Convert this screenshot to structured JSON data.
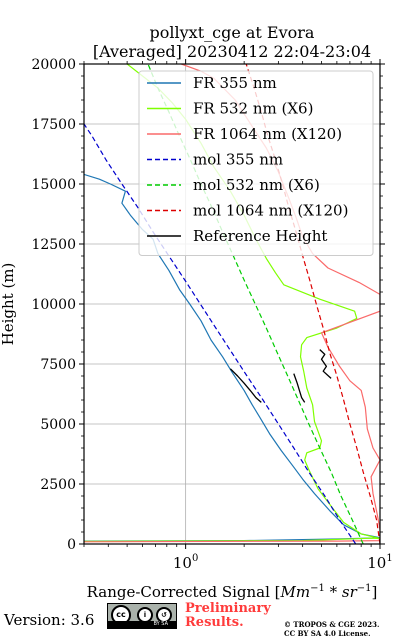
{
  "chart_data": {
    "type": "line",
    "title": "pollyxt_cge at Evora",
    "subtitle": "[Averaged] 20230412 22:04-23:04",
    "xlabel": "Range-Corrected Signal [Mm^-1 * sr^-1]",
    "xlabel_prefix": "Range-Corrected Signal [",
    "xlabel_math": "Mm",
    "xlabel_exp1": "−1",
    "xlabel_mid": " * sr",
    "xlabel_exp2": "−1",
    "xlabel_suffix": "]",
    "ylabel": "Height (m)",
    "xscale": "log",
    "xlim": [
      0.3,
      10
    ],
    "ylim": [
      0,
      20000
    ],
    "x_tick_values": [
      1,
      10
    ],
    "x_tick_bases": [
      "10",
      "10"
    ],
    "x_tick_exps": [
      "0",
      "1"
    ],
    "y_tick_values": [
      0,
      2500,
      5000,
      7500,
      10000,
      12500,
      15000,
      17500,
      20000
    ],
    "y_tick_labels": [
      "0",
      "2500",
      "5000",
      "7500",
      "10000",
      "12500",
      "15000",
      "17500",
      "20000"
    ],
    "grid": true,
    "legend_position": "top-right",
    "series": [
      {
        "name": "FR 355 nm",
        "color": "#1f77b4",
        "style": "solid",
        "width": 1.2,
        "points": [
          [
            0.3,
            120
          ],
          [
            2,
            140
          ],
          [
            6,
            210
          ],
          [
            10,
            260
          ],
          [
            8,
            420
          ],
          [
            6.5,
            800
          ],
          [
            5.5,
            1400
          ],
          [
            4.6,
            2100
          ],
          [
            4,
            2700
          ],
          [
            3.6,
            3200
          ],
          [
            3.1,
            3900
          ],
          [
            2.7,
            4600
          ],
          [
            2.4,
            5300
          ],
          [
            2.2,
            5800
          ],
          [
            2.0,
            6400
          ],
          [
            1.75,
            7100
          ],
          [
            1.55,
            7800
          ],
          [
            1.35,
            8500
          ],
          [
            1.2,
            9300
          ],
          [
            1.05,
            10000
          ],
          [
            0.93,
            10600
          ],
          [
            0.82,
            11400
          ],
          [
            0.72,
            12100
          ],
          [
            0.68,
            12700
          ],
          [
            0.6,
            13100
          ],
          [
            0.52,
            13700
          ],
          [
            0.47,
            14200
          ],
          [
            0.49,
            14700
          ],
          [
            0.41,
            15000
          ],
          [
            0.36,
            15200
          ],
          [
            0.3,
            15400
          ]
        ]
      },
      {
        "name": "FR 532 nm (X6)",
        "color": "#7fff00",
        "style": "solid",
        "width": 1.2,
        "points": [
          [
            0.3,
            110
          ],
          [
            4,
            140
          ],
          [
            9,
            240
          ],
          [
            10,
            230
          ],
          [
            8,
            420
          ],
          [
            6.5,
            900
          ],
          [
            5.7,
            1500
          ],
          [
            4.8,
            2300
          ],
          [
            4.3,
            3100
          ],
          [
            4.1,
            3500
          ],
          [
            4.2,
            3800
          ],
          [
            4.9,
            4000
          ],
          [
            5,
            4300
          ],
          [
            4.8,
            4700
          ],
          [
            4.6,
            5100
          ],
          [
            4.5,
            5800
          ],
          [
            4.2,
            6500
          ],
          [
            4.05,
            7200
          ],
          [
            3.9,
            7800
          ],
          [
            3.95,
            8300
          ],
          [
            4.2,
            8600
          ],
          [
            6,
            9000
          ],
          [
            7.6,
            9400
          ],
          [
            7.4,
            9700
          ],
          [
            4.9,
            10200
          ],
          [
            3.2,
            10800
          ],
          [
            2.9,
            11300
          ],
          [
            2.6,
            11900
          ],
          [
            2.3,
            12700
          ],
          [
            2.0,
            13700
          ],
          [
            1.7,
            14700
          ],
          [
            1.4,
            15700
          ],
          [
            1.2,
            16700
          ],
          [
            1.0,
            17700
          ],
          [
            0.85,
            18400
          ],
          [
            0.72,
            19000
          ],
          [
            0.6,
            19500
          ],
          [
            0.5,
            20000
          ]
        ]
      },
      {
        "name": "FR 1064 nm (X120)",
        "color": "#fa6a6a",
        "style": "solid",
        "width": 1.2,
        "points": [
          [
            0.3,
            90
          ],
          [
            6,
            120
          ],
          [
            10,
            140
          ],
          [
            10,
            600
          ],
          [
            9.7,
            1200
          ],
          [
            9.2,
            2100
          ],
          [
            9.0,
            2800
          ],
          [
            10,
            3500
          ],
          [
            9.2,
            4000
          ],
          [
            8.6,
            4800
          ],
          [
            8.4,
            5700
          ],
          [
            8.0,
            6400
          ],
          [
            7.0,
            6800
          ],
          [
            6.2,
            7400
          ],
          [
            5.4,
            8200
          ],
          [
            5.0,
            8800
          ],
          [
            10,
            9700
          ],
          [
            10,
            10400
          ],
          [
            7.8,
            10900
          ],
          [
            5.4,
            11500
          ],
          [
            4.5,
            12100
          ],
          [
            4.0,
            12800
          ],
          [
            3.7,
            13600
          ],
          [
            3.4,
            14400
          ],
          [
            3.0,
            15500
          ],
          [
            2.6,
            16500
          ],
          [
            2.2,
            17400
          ],
          [
            1.8,
            18500
          ],
          [
            1.4,
            19400
          ],
          [
            1.2,
            19700
          ],
          [
            0.95,
            20000
          ]
        ]
      },
      {
        "name": "mol 355 nm",
        "color": "#0000cd",
        "style": "dashed",
        "width": 1.2,
        "points": [
          [
            7.5,
            0
          ],
          [
            6.2,
            1000
          ],
          [
            5.2,
            2000
          ],
          [
            4.3,
            3000
          ],
          [
            3.6,
            4000
          ],
          [
            3.0,
            5000
          ],
          [
            2.5,
            6000
          ],
          [
            2.07,
            7000
          ],
          [
            1.72,
            8000
          ],
          [
            1.43,
            9000
          ],
          [
            1.19,
            10000
          ],
          [
            0.99,
            11000
          ],
          [
            0.82,
            12000
          ],
          [
            0.68,
            13000
          ],
          [
            0.57,
            14000
          ],
          [
            0.47,
            15000
          ],
          [
            0.39,
            16000
          ],
          [
            0.33,
            17000
          ],
          [
            0.3,
            17500
          ]
        ]
      },
      {
        "name": "mol 532 nm (X6)",
        "color": "#00cc00",
        "style": "dashed",
        "width": 1.2,
        "points": [
          [
            8.2,
            0
          ],
          [
            7.2,
            1000
          ],
          [
            6.3,
            2000
          ],
          [
            5.6,
            3000
          ],
          [
            4.9,
            4000
          ],
          [
            4.3,
            5000
          ],
          [
            3.8,
            6000
          ],
          [
            3.35,
            7000
          ],
          [
            2.95,
            8000
          ],
          [
            2.6,
            9000
          ],
          [
            2.28,
            10000
          ],
          [
            2.0,
            11000
          ],
          [
            1.76,
            12000
          ],
          [
            1.55,
            13000
          ],
          [
            1.37,
            14000
          ],
          [
            1.2,
            15000
          ],
          [
            1.06,
            16000
          ],
          [
            0.93,
            17000
          ],
          [
            0.82,
            18000
          ],
          [
            0.72,
            19000
          ],
          [
            0.64,
            20000
          ]
        ]
      },
      {
        "name": "mol 1064 nm (X120)",
        "color": "#dd0000",
        "style": "dashed",
        "width": 1.2,
        "points": [
          [
            10,
            0
          ],
          [
            9.6,
            1000
          ],
          [
            8.9,
            2000
          ],
          [
            8.2,
            3000
          ],
          [
            7.6,
            4000
          ],
          [
            7.0,
            5000
          ],
          [
            6.5,
            6000
          ],
          [
            6.0,
            7000
          ],
          [
            5.5,
            8000
          ],
          [
            5.1,
            9000
          ],
          [
            4.7,
            10000
          ],
          [
            4.35,
            11000
          ],
          [
            4.0,
            12000
          ],
          [
            3.7,
            13000
          ],
          [
            3.4,
            14000
          ],
          [
            3.15,
            15000
          ],
          [
            2.9,
            16000
          ],
          [
            2.65,
            17000
          ],
          [
            2.45,
            18000
          ],
          [
            2.25,
            19000
          ],
          [
            2.05,
            20000
          ]
        ]
      },
      {
        "name": "Reference Height",
        "color": "#000000",
        "style": "solid",
        "width": 1.3,
        "segments": [
          [
            [
              1.7,
              7300
            ],
            [
              1.85,
              7000
            ],
            [
              2.0,
              6700
            ],
            [
              2.15,
              6400
            ],
            [
              2.3,
              6100
            ],
            [
              2.45,
              5900
            ]
          ],
          [
            [
              3.6,
              7100
            ],
            [
              3.75,
              6700
            ],
            [
              3.85,
              6400
            ],
            [
              3.95,
              6100
            ],
            [
              4.1,
              5900
            ]
          ],
          [
            [
              4.9,
              8100
            ],
            [
              5.2,
              7900
            ],
            [
              5.0,
              7700
            ],
            [
              5.3,
              7400
            ],
            [
              5.1,
              7200
            ],
            [
              5.6,
              6900
            ]
          ]
        ]
      }
    ]
  },
  "footer": {
    "version": "Version: 3.6",
    "preliminary_line1": "Preliminary",
    "preliminary_line2": "Results.",
    "copyright_line1": "© TROPOS & CGE 2023.",
    "copyright_line2": "CC BY SA 4.0 License."
  },
  "license_badge": {
    "icon_cc": "cc-icon",
    "icon_by": "person-icon",
    "icon_sa": "share-alike-icon",
    "strip_text": "BY SA"
  }
}
